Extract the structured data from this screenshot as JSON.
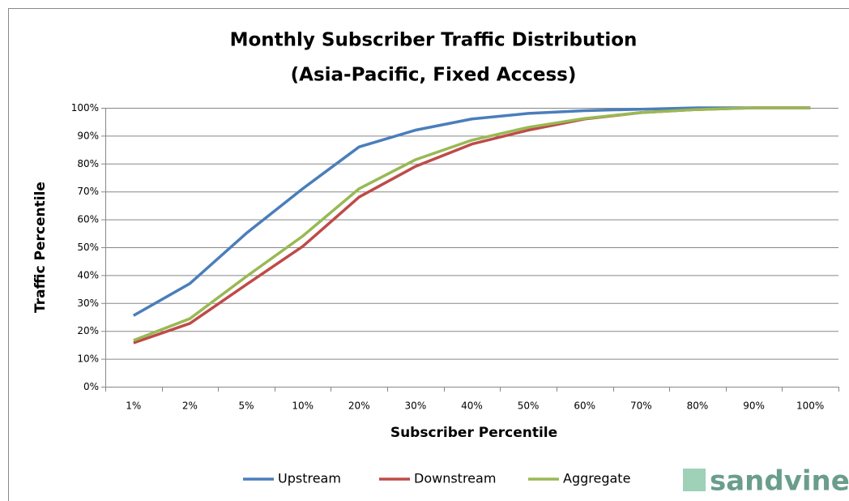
{
  "chart_data": {
    "type": "line",
    "title": "Monthly Subscriber Traffic Distribution",
    "subtitle": "(Asia-Pacific, Fixed Access)",
    "x_label": "Subscriber Percentile",
    "y_label": "Traffic Percentile",
    "categories": [
      "1%",
      "2%",
      "5%",
      "10%",
      "20%",
      "30%",
      "40%",
      "50%",
      "60%",
      "70%",
      "80%",
      "90%",
      "100%"
    ],
    "series": [
      {
        "name": "Upstream",
        "color": "#4a7ebb",
        "values": [
          25.5,
          37,
          55,
          71,
          86,
          92,
          96,
          98,
          99,
          99.5,
          100,
          100,
          100
        ]
      },
      {
        "name": "Downstream",
        "color": "#be4b48",
        "values": [
          15.7,
          22.7,
          36.6,
          50.3,
          68,
          79,
          87,
          92,
          96,
          98.3,
          99.4,
          100,
          100
        ]
      },
      {
        "name": "Aggregate",
        "color": "#98b954",
        "values": [
          16.6,
          24.4,
          39.5,
          54,
          71,
          81.4,
          88.4,
          93,
          96.2,
          98.3,
          99.4,
          100,
          100
        ]
      }
    ],
    "ylim": [
      0,
      100
    ],
    "yticks": [
      {
        "value": 0,
        "label": "0%"
      },
      {
        "value": 10,
        "label": "10%"
      },
      {
        "value": 20,
        "label": "20%"
      },
      {
        "value": 30,
        "label": "30%"
      },
      {
        "value": 40,
        "label": "40%"
      },
      {
        "value": 50,
        "label": "50%"
      },
      {
        "value": 60,
        "label": "60%"
      },
      {
        "value": 70,
        "label": "70%"
      },
      {
        "value": 80,
        "label": "80%"
      },
      {
        "value": 90,
        "label": "90%"
      },
      {
        "value": 100,
        "label": "100%"
      }
    ],
    "grid": true,
    "legend": "bottom",
    "logo": "sandvine"
  }
}
